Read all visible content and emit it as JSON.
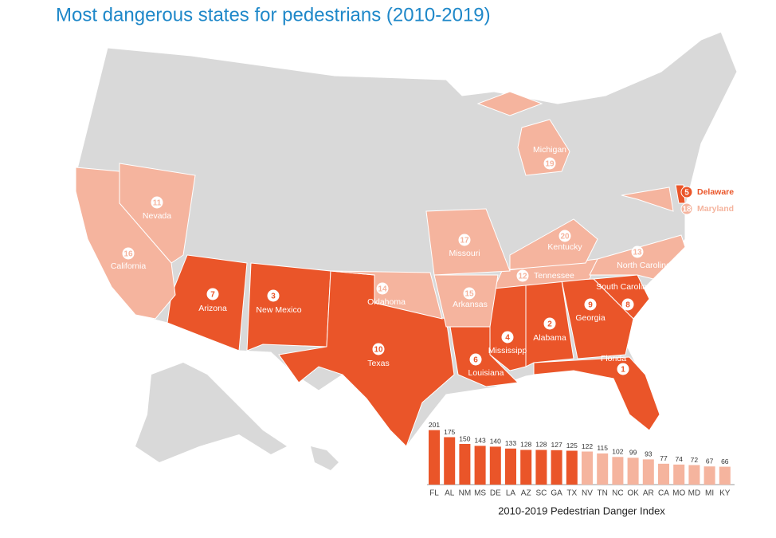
{
  "title": "Most dangerous states for pedestrians (2010-2019)",
  "colors": {
    "top": "#ea5529",
    "other": "#f5b49e",
    "land": "#d9d9d9"
  },
  "states": [
    {
      "name": "Florida",
      "rank": 1,
      "tier": "top"
    },
    {
      "name": "Alabama",
      "rank": 2,
      "tier": "top"
    },
    {
      "name": "New Mexico",
      "rank": 3,
      "tier": "top"
    },
    {
      "name": "Mississipp",
      "rank": 4,
      "tier": "top"
    },
    {
      "name": "Delaware",
      "rank": 5,
      "tier": "top"
    },
    {
      "name": "Louisiana",
      "rank": 6,
      "tier": "top"
    },
    {
      "name": "Arizona",
      "rank": 7,
      "tier": "top"
    },
    {
      "name": "South Carolina",
      "rank": 8,
      "tier": "top"
    },
    {
      "name": "Georgia",
      "rank": 9,
      "tier": "top"
    },
    {
      "name": "Texas",
      "rank": 10,
      "tier": "top"
    },
    {
      "name": "Nevada",
      "rank": 11,
      "tier": "other"
    },
    {
      "name": "Tennessee",
      "rank": 12,
      "tier": "other"
    },
    {
      "name": "North Carolina",
      "rank": 13,
      "tier": "other"
    },
    {
      "name": "Oklahoma",
      "rank": 14,
      "tier": "other"
    },
    {
      "name": "Arkansas",
      "rank": 15,
      "tier": "other"
    },
    {
      "name": "California",
      "rank": 16,
      "tier": "other"
    },
    {
      "name": "Missouri",
      "rank": 17,
      "tier": "other"
    },
    {
      "name": "Maryland",
      "rank": 18,
      "tier": "other"
    },
    {
      "name": "Michigan",
      "rank": 19,
      "tier": "other"
    },
    {
      "name": "Kentucky",
      "rank": 20,
      "tier": "other"
    }
  ],
  "chart_data": {
    "type": "bar",
    "xlabel": "2010-2019 Pedestrian Danger Index",
    "categories": [
      "FL",
      "AL",
      "NM",
      "MS",
      "DE",
      "LA",
      "AZ",
      "SC",
      "GA",
      "TX",
      "NV",
      "TN",
      "NC",
      "OK",
      "AR",
      "CA",
      "MO",
      "MD",
      "MI",
      "KY"
    ],
    "values": [
      201,
      175,
      150,
      143,
      140,
      133,
      128,
      128,
      127,
      125,
      122,
      115,
      102,
      99,
      93,
      77,
      74,
      72,
      67,
      66
    ],
    "colors": [
      "#ea5529",
      "#ea5529",
      "#ea5529",
      "#ea5529",
      "#ea5529",
      "#ea5529",
      "#ea5529",
      "#ea5529",
      "#ea5529",
      "#ea5529",
      "#f5b49e",
      "#f5b49e",
      "#f5b49e",
      "#f5b49e",
      "#f5b49e",
      "#f5b49e",
      "#f5b49e",
      "#f5b49e",
      "#f5b49e",
      "#f5b49e"
    ]
  }
}
